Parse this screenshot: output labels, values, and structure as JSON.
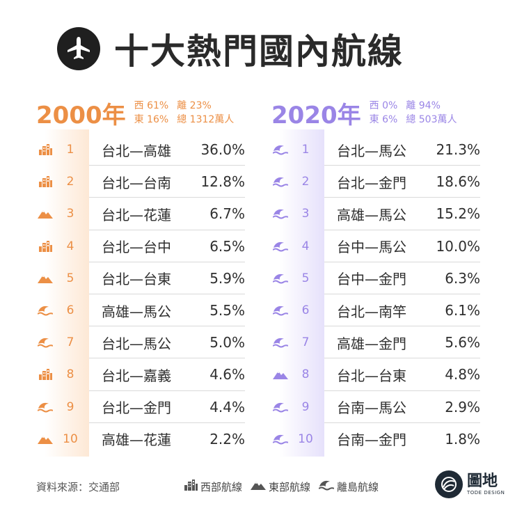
{
  "title": "十大熱門國內航線",
  "left": {
    "year": "2000年",
    "stats": {
      "west": "西 61%",
      "island": "離 23%",
      "east": "東 16%",
      "total": "總 1312萬人"
    },
    "routes": [
      {
        "rank": "1",
        "route": "台北—高雄",
        "pct": "36.0%",
        "type": "west-icon"
      },
      {
        "rank": "2",
        "route": "台北—台南",
        "pct": "12.8%",
        "type": "west-icon"
      },
      {
        "rank": "3",
        "route": "台北—花蓮",
        "pct": "6.7%",
        "type": "east-icon"
      },
      {
        "rank": "4",
        "route": "台北—台中",
        "pct": "6.5%",
        "type": "west-icon"
      },
      {
        "rank": "5",
        "route": "台北—台東",
        "pct": "5.9%",
        "type": "east-icon"
      },
      {
        "rank": "6",
        "route": "高雄—馬公",
        "pct": "5.5%",
        "type": "island-icon"
      },
      {
        "rank": "7",
        "route": "台北—馬公",
        "pct": "5.0%",
        "type": "island-icon"
      },
      {
        "rank": "8",
        "route": "台北—嘉義",
        "pct": "4.6%",
        "type": "west-icon"
      },
      {
        "rank": "9",
        "route": "台北—金門",
        "pct": "4.4%",
        "type": "island-icon"
      },
      {
        "rank": "10",
        "route": "高雄—花蓮",
        "pct": "2.2%",
        "type": "east-icon"
      }
    ]
  },
  "right": {
    "year": "2020年",
    "stats": {
      "west": "西 0%",
      "island": "離 94%",
      "east": "東 6%",
      "total": "總 503萬人"
    },
    "routes": [
      {
        "rank": "1",
        "route": "台北—馬公",
        "pct": "21.3%",
        "type": "island-icon"
      },
      {
        "rank": "2",
        "route": "台北—金門",
        "pct": "18.6%",
        "type": "island-icon"
      },
      {
        "rank": "3",
        "route": "高雄—馬公",
        "pct": "15.2%",
        "type": "island-icon"
      },
      {
        "rank": "4",
        "route": "台中—馬公",
        "pct": "10.0%",
        "type": "island-icon"
      },
      {
        "rank": "5",
        "route": "台中—金門",
        "pct": "6.3%",
        "type": "island-icon"
      },
      {
        "rank": "6",
        "route": "台北—南竿",
        "pct": "6.1%",
        "type": "island-icon"
      },
      {
        "rank": "7",
        "route": "高雄—金門",
        "pct": "5.6%",
        "type": "island-icon"
      },
      {
        "rank": "8",
        "route": "台北—台東",
        "pct": "4.8%",
        "type": "east-icon"
      },
      {
        "rank": "9",
        "route": "台南—馬公",
        "pct": "2.9%",
        "type": "island-icon"
      },
      {
        "rank": "10",
        "route": "台南—金門",
        "pct": "1.8%",
        "type": "island-icon"
      }
    ]
  },
  "footer": {
    "source": "資料來源：交通部",
    "legend": [
      {
        "label": "西部航線",
        "icon": "west-icon"
      },
      {
        "label": "東部航線",
        "icon": "east-icon"
      },
      {
        "label": "離島航線",
        "icon": "island-icon"
      }
    ]
  },
  "brand": {
    "name": "圖地",
    "sub": "TODE DESIGN"
  },
  "colors": {
    "left_accent": "#ec8f45",
    "right_accent": "#9a85e6",
    "left_bg": "#fde8d5",
    "right_bg": "#e6e1fb"
  }
}
